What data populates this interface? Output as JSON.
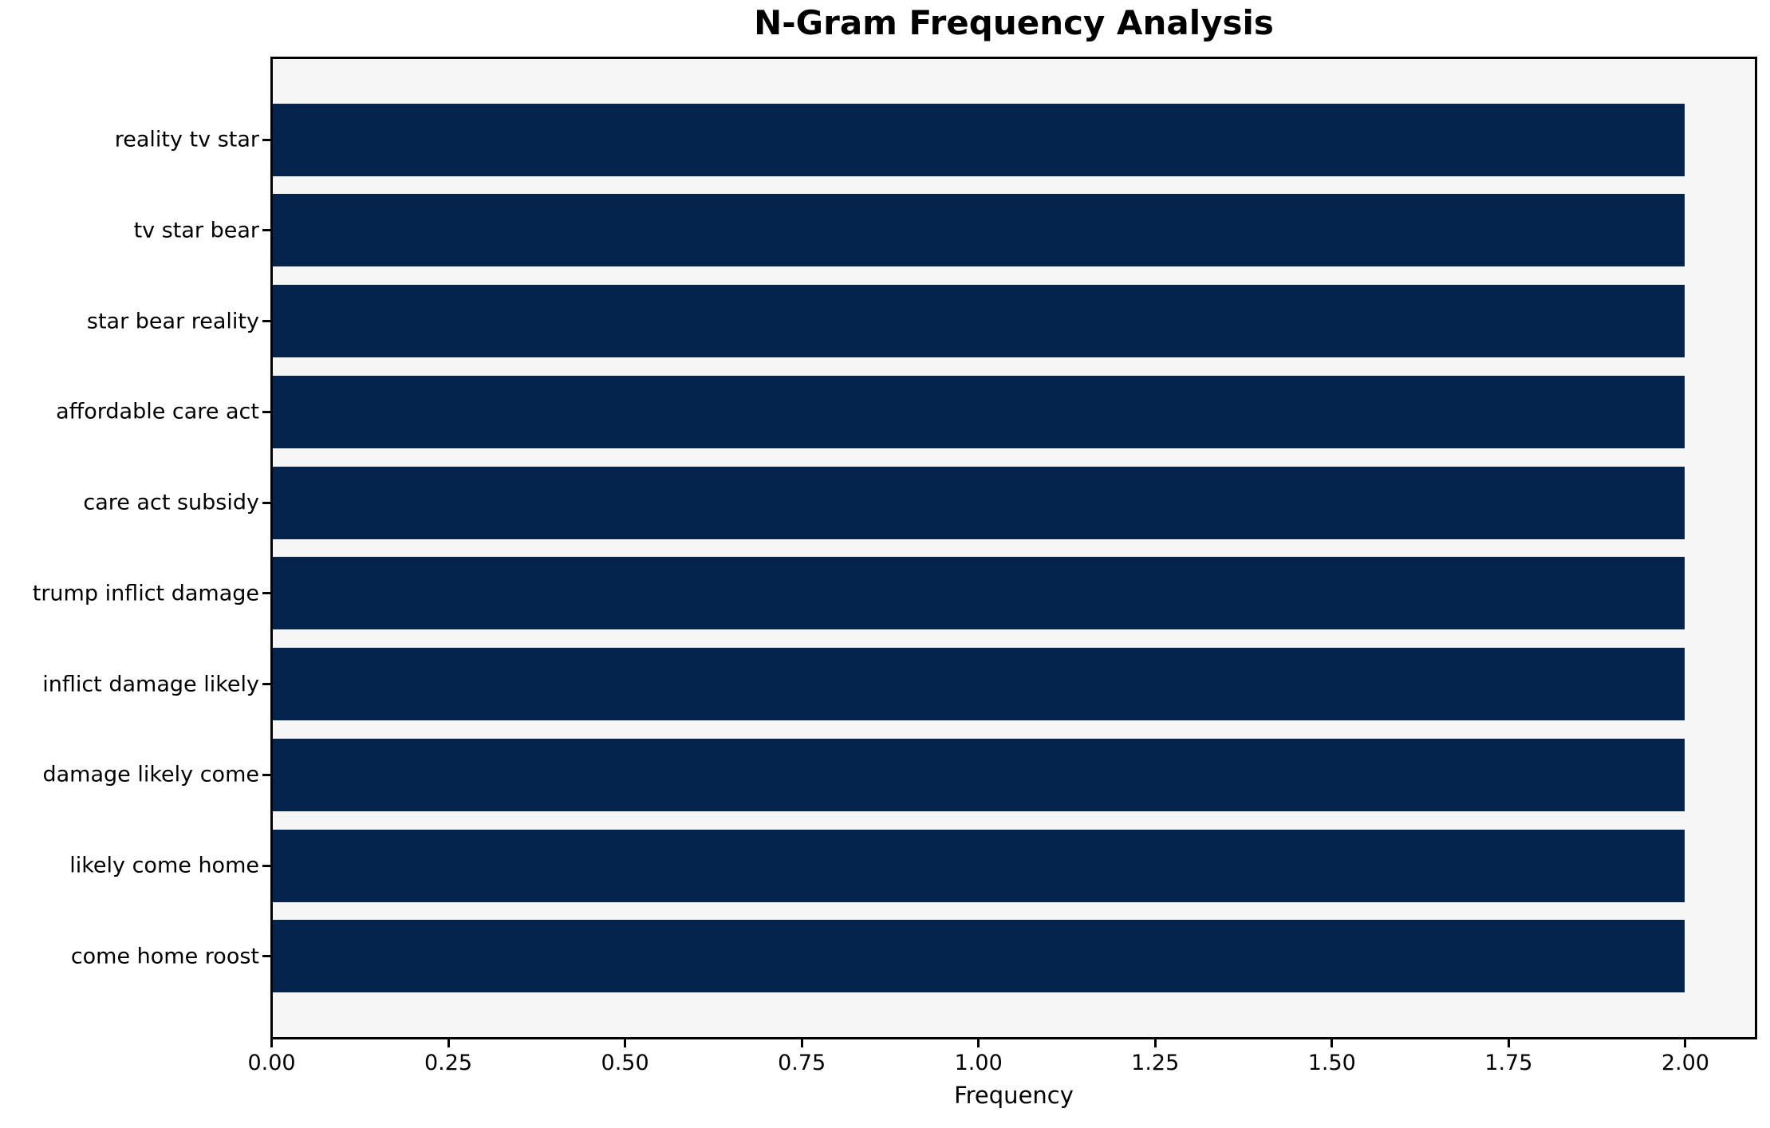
{
  "chart_data": {
    "type": "bar",
    "orientation": "horizontal",
    "title": "N-Gram Frequency Analysis",
    "xlabel": "Frequency",
    "ylabel": "",
    "categories": [
      "reality tv star",
      "tv star bear",
      "star bear reality",
      "affordable care act",
      "care act subsidy",
      "trump inflict damage",
      "inflict damage likely",
      "damage likely come",
      "likely come home",
      "come home roost"
    ],
    "values": [
      2,
      2,
      2,
      2,
      2,
      2,
      2,
      2,
      2,
      2
    ],
    "xticks": [
      "0.00",
      "0.25",
      "0.50",
      "0.75",
      "1.00",
      "1.25",
      "1.50",
      "1.75",
      "2.00"
    ],
    "xlim": [
      0,
      2.1
    ],
    "bar_height_fraction": 0.8,
    "grid": false,
    "legend": false,
    "colors": {
      "bar": "#05244d",
      "plot_background": "#f5f5f5",
      "figure_background": "#ffffff",
      "spine": "#000000",
      "text": "#000000"
    }
  }
}
